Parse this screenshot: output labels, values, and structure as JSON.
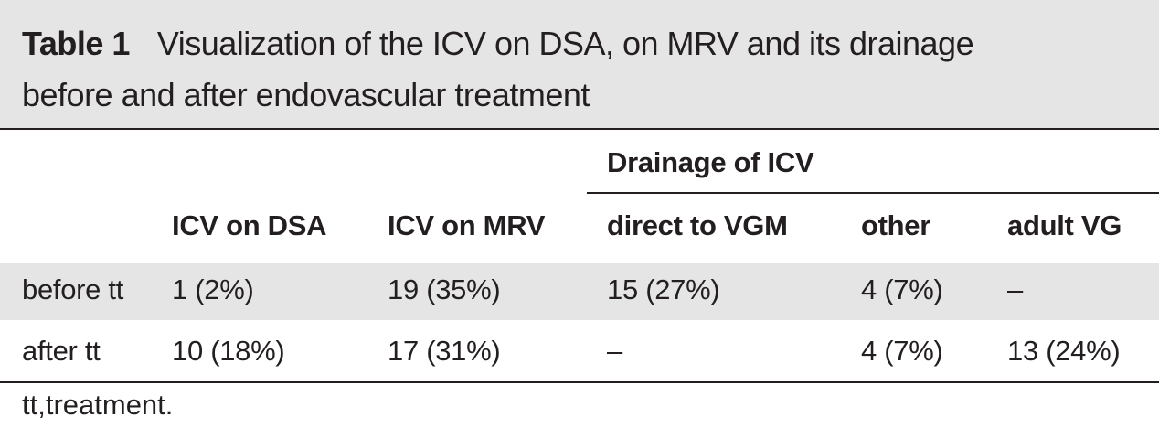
{
  "caption": {
    "label": "Table 1",
    "line1": "Visualization of the ICV on DSA, on MRV and its drainage",
    "line2": "before and after endovascular treatment"
  },
  "table": {
    "group_header": "Drainage of ICV",
    "columns": [
      "ICV on DSA",
      "ICV on MRV",
      "direct to VGM",
      "other",
      "adult VG"
    ],
    "rows": [
      {
        "label": "before tt",
        "cells": [
          "1 (2%)",
          "19 (35%)",
          "15 (27%)",
          "4 (7%)",
          "–"
        ]
      },
      {
        "label": "after tt",
        "cells": [
          "10 (18%)",
          "17 (31%)",
          "–",
          "4 (7%)",
          "13 (24%)"
        ]
      }
    ]
  },
  "footnote": "tt,treatment."
}
